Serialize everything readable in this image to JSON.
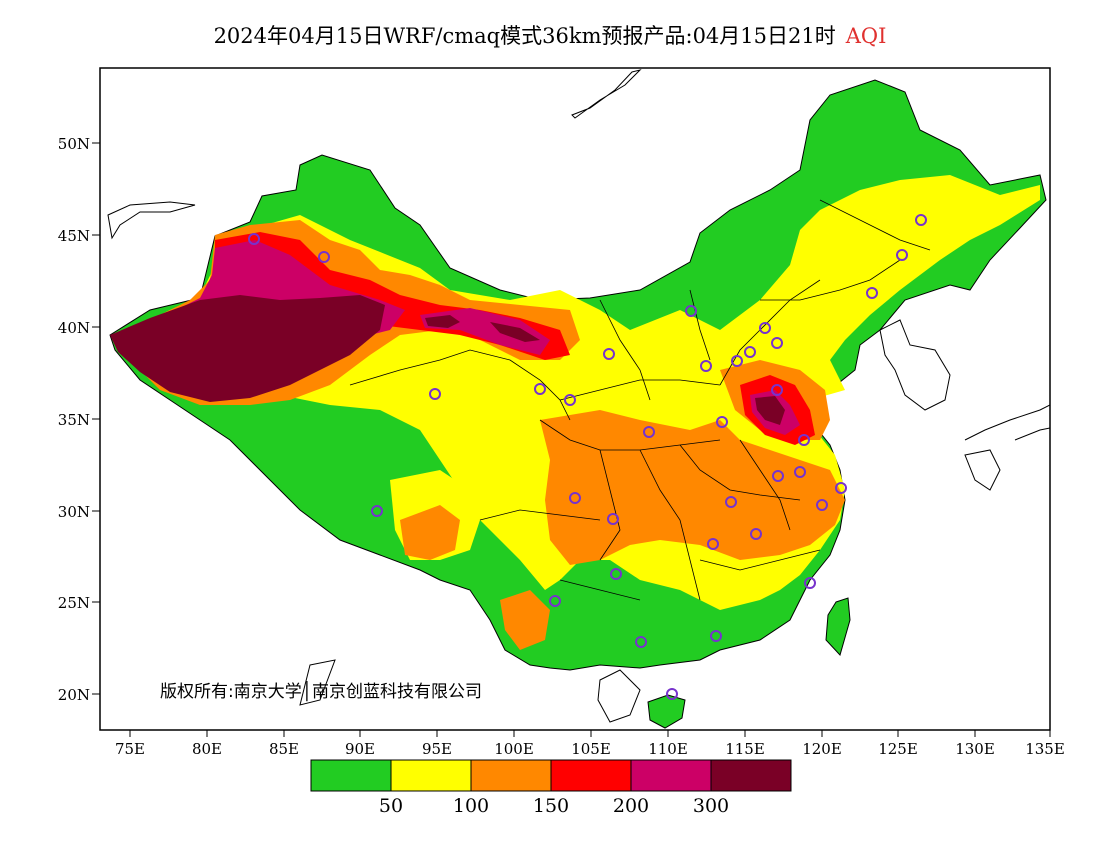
{
  "title": {
    "main": "2024年04月15日WRF/cmaq模式36km预报产品:04月15日21时",
    "variable": "AQI"
  },
  "axes": {
    "lat_labels": [
      "50N",
      "45N",
      "40N",
      "35N",
      "30N",
      "25N",
      "20N"
    ],
    "lon_labels": [
      "75E",
      "80E",
      "85E",
      "90E",
      "95E",
      "100E",
      "105E",
      "110E",
      "115E",
      "120E",
      "125E",
      "130E",
      "135E"
    ]
  },
  "legend": {
    "colors": [
      "#22cc22",
      "#ffff00",
      "#ff8800",
      "#ff0000",
      "#cc0066",
      "#7a0026"
    ],
    "thresholds": [
      "50",
      "100",
      "150",
      "200",
      "300"
    ]
  },
  "copyright": "版权所有:南京大学│南京创蓝科技有限公司",
  "colors": {
    "good": "#22cc22",
    "moderate": "#ffff00",
    "light": "#ff8800",
    "medium": "#ff0000",
    "heavy": "#cc0066",
    "severe": "#7a0026",
    "station_marker": "#7733cc"
  }
}
